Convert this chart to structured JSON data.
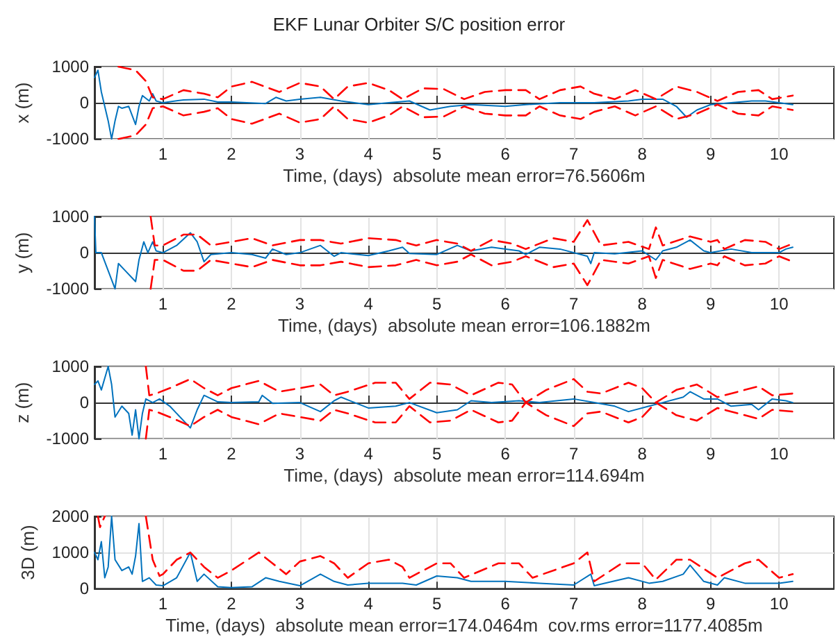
{
  "chart_data": [
    {
      "type": "line",
      "title": "EKF Lunar Orbiter S/C position error",
      "xlabel": "Time, (days)  absolute mean error=76.5606m",
      "ylabel": "x (m)",
      "xlim": [
        0,
        10.8
      ],
      "xticks": [
        1,
        2,
        3,
        4,
        5,
        6,
        7,
        8,
        9,
        10
      ],
      "ylim": [
        -1000,
        1000
      ],
      "yticks": [
        -1000,
        0,
        1000
      ],
      "grid": true,
      "marker": "none",
      "series": [
        {
          "color": "#0072bd",
          "line_style": "solid",
          "x": [
            0,
            0.05,
            0.1,
            0.2,
            0.25,
            0.3,
            0.35,
            0.4,
            0.5,
            0.6,
            0.65,
            0.7,
            0.8,
            0.85,
            0.9,
            1.0,
            1.3,
            1.6,
            1.8,
            2.0,
            2.5,
            2.65,
            2.8,
            3.0,
            3.3,
            3.6,
            4.0,
            4.3,
            4.6,
            4.9,
            5.2,
            5.5,
            6.0,
            6.3,
            6.8,
            7.3,
            7.8,
            8.0,
            8.3,
            8.5,
            8.65,
            8.8,
            9.0,
            9.3,
            9.6,
            9.8,
            10.0,
            10.2
          ],
          "values": [
            700,
            900,
            300,
            -500,
            -1000,
            -500,
            -100,
            -150,
            -100,
            -600,
            -100,
            200,
            50,
            250,
            50,
            0,
            80,
            100,
            20,
            20,
            -20,
            150,
            50,
            100,
            150,
            50,
            -50,
            0,
            50,
            -200,
            -100,
            -50,
            -100,
            -50,
            0,
            0,
            50,
            100,
            100,
            -100,
            -400,
            -200,
            -50,
            0,
            50,
            50,
            0,
            -50
          ]
        },
        {
          "color": "#ff0000",
          "line_style": "dashed",
          "x": [
            0.35,
            0.6,
            0.75,
            0.85,
            1.0,
            1.3,
            1.6,
            1.8,
            2.0,
            2.3,
            2.7,
            3.0,
            3.3,
            3.5,
            3.7,
            4.0,
            4.3,
            4.5,
            4.8,
            5.1,
            5.4,
            5.7,
            6.0,
            6.3,
            6.5,
            6.8,
            7.1,
            7.3,
            7.6,
            7.9,
            8.2,
            8.5,
            8.8,
            9.1,
            9.4,
            9.7,
            9.9,
            10.2
          ],
          "values": [
            1000,
            900,
            600,
            150,
            100,
            350,
            250,
            150,
            450,
            580,
            300,
            550,
            450,
            100,
            450,
            550,
            350,
            100,
            400,
            380,
            100,
            300,
            350,
            350,
            100,
            350,
            450,
            250,
            100,
            350,
            100,
            450,
            300,
            50,
            300,
            350,
            100,
            200
          ]
        },
        {
          "color": "#ff0000",
          "line_style": "dashed",
          "x": [
            0.35,
            0.6,
            0.75,
            0.85,
            1.0,
            1.3,
            1.6,
            1.8,
            2.0,
            2.3,
            2.7,
            3.0,
            3.3,
            3.5,
            3.7,
            4.0,
            4.3,
            4.5,
            4.8,
            5.1,
            5.4,
            5.7,
            6.0,
            6.3,
            6.5,
            6.8,
            7.1,
            7.3,
            7.6,
            7.9,
            8.2,
            8.5,
            8.8,
            9.1,
            9.4,
            9.7,
            9.9,
            10.2
          ],
          "values": [
            -1000,
            -900,
            -600,
            -150,
            -100,
            -350,
            -250,
            -150,
            -450,
            -580,
            -300,
            -550,
            -450,
            -100,
            -450,
            -550,
            -350,
            -100,
            -400,
            -380,
            -100,
            -300,
            -350,
            -350,
            -100,
            -350,
            -450,
            -250,
            -100,
            -350,
            -100,
            -450,
            -300,
            -50,
            -300,
            -350,
            -100,
            -200
          ]
        }
      ]
    },
    {
      "type": "line",
      "xlabel": "Time, (days)  absolute mean error=106.1882m",
      "ylabel": "y (m)",
      "xlim": [
        0,
        10.8
      ],
      "xticks": [
        1,
        2,
        3,
        4,
        5,
        6,
        7,
        8,
        9,
        10
      ],
      "ylim": [
        -1000,
        1000
      ],
      "yticks": [
        -1000,
        0,
        1000
      ],
      "grid": true,
      "marker": "none",
      "series": [
        {
          "color": "#0072bd",
          "line_style": "solid",
          "x": [
            0,
            0.02,
            0.1,
            0.2,
            0.3,
            0.35,
            0.45,
            0.6,
            0.65,
            0.72,
            0.78,
            0.85,
            0.9,
            1.0,
            1.2,
            1.4,
            1.5,
            1.6,
            1.7,
            2.0,
            2.3,
            2.5,
            2.6,
            2.8,
            3.0,
            3.3,
            3.5,
            3.6,
            4.0,
            4.3,
            4.5,
            4.6,
            5.0,
            5.3,
            5.5,
            5.8,
            6.2,
            6.3,
            6.5,
            6.8,
            7.2,
            7.25,
            7.3,
            7.6,
            8.0,
            8.2,
            8.3,
            8.5,
            8.7,
            8.9,
            9.0,
            9.3,
            9.6,
            10.0,
            10.1,
            10.2
          ],
          "values": [
            1000,
            0,
            0,
            -500,
            -1000,
            -300,
            -500,
            -800,
            -200,
            300,
            0,
            300,
            50,
            0,
            200,
            550,
            300,
            -250,
            -50,
            0,
            -50,
            -150,
            100,
            -50,
            0,
            200,
            -100,
            0,
            -80,
            50,
            150,
            -20,
            -50,
            200,
            50,
            150,
            50,
            -50,
            150,
            100,
            -100,
            -300,
            0,
            -30,
            50,
            -200,
            50,
            150,
            350,
            50,
            0,
            100,
            0,
            0,
            100,
            150
          ]
        },
        {
          "color": "#ff0000",
          "line_style": "dashed",
          "x": [
            0.82,
            0.88,
            1.0,
            1.3,
            1.5,
            1.7,
            2.0,
            2.3,
            2.6,
            3.0,
            3.3,
            3.6,
            4.0,
            4.4,
            4.7,
            5.0,
            5.3,
            5.5,
            5.8,
            6.1,
            6.3,
            6.7,
            7.0,
            7.2,
            7.4,
            7.8,
            8.1,
            8.2,
            8.3,
            8.7,
            9.0,
            9.1,
            9.2,
            9.5,
            9.8,
            10.0,
            10.2
          ],
          "values": [
            1000,
            200,
            200,
            500,
            500,
            200,
            300,
            400,
            200,
            350,
            350,
            250,
            400,
            350,
            200,
            350,
            250,
            50,
            350,
            250,
            100,
            400,
            300,
            900,
            200,
            300,
            100,
            700,
            200,
            450,
            300,
            350,
            100,
            350,
            300,
            100,
            250
          ]
        },
        {
          "color": "#ff0000",
          "line_style": "dashed",
          "x": [
            0.82,
            0.88,
            1.0,
            1.3,
            1.5,
            1.7,
            2.0,
            2.3,
            2.6,
            3.0,
            3.3,
            3.6,
            4.0,
            4.4,
            4.7,
            5.0,
            5.3,
            5.5,
            5.8,
            6.1,
            6.3,
            6.7,
            7.0,
            7.2,
            7.4,
            7.8,
            8.1,
            8.2,
            8.3,
            8.7,
            9.0,
            9.1,
            9.2,
            9.5,
            9.8,
            10.0,
            10.2
          ],
          "values": [
            -1000,
            -200,
            -200,
            -500,
            -500,
            -200,
            -300,
            -400,
            -200,
            -350,
            -350,
            -250,
            -400,
            -350,
            -200,
            -350,
            -250,
            -50,
            -350,
            -250,
            -100,
            -400,
            -300,
            -900,
            -200,
            -300,
            -100,
            -700,
            -200,
            -450,
            -300,
            -350,
            -100,
            -350,
            -300,
            -100,
            -250
          ]
        }
      ]
    },
    {
      "type": "line",
      "xlabel": "Time, (days)  absolute mean error=114.694m",
      "ylabel": "z (m)",
      "xlim": [
        0,
        10.8
      ],
      "xticks": [
        1,
        2,
        3,
        4,
        5,
        6,
        7,
        8,
        9,
        10
      ],
      "ylim": [
        -1000,
        1000
      ],
      "yticks": [
        -1000,
        0,
        1000
      ],
      "grid": true,
      "marker": "none",
      "series": [
        {
          "color": "#0072bd",
          "line_style": "solid",
          "x": [
            0,
            0.05,
            0.1,
            0.2,
            0.25,
            0.3,
            0.4,
            0.5,
            0.55,
            0.6,
            0.65,
            0.7,
            0.75,
            0.85,
            0.95,
            1.1,
            1.3,
            1.4,
            1.5,
            1.6,
            1.8,
            2.0,
            2.4,
            2.45,
            2.6,
            3.0,
            3.3,
            3.5,
            3.6,
            3.8,
            4.0,
            4.4,
            4.6,
            5.0,
            5.3,
            5.5,
            5.8,
            6.2,
            6.5,
            7.0,
            7.3,
            7.6,
            7.8,
            8.1,
            8.3,
            8.6,
            8.7,
            8.9,
            9.1,
            9.3,
            9.6,
            9.7,
            9.9,
            10.1,
            10.2
          ],
          "values": [
            500,
            600,
            350,
            1000,
            500,
            -400,
            -100,
            -300,
            -900,
            -200,
            -1000,
            -300,
            100,
            0,
            100,
            -100,
            -500,
            -700,
            -200,
            200,
            20,
            0,
            20,
            200,
            -20,
            0,
            -250,
            50,
            150,
            0,
            -150,
            -100,
            0,
            -280,
            -200,
            50,
            0,
            50,
            0,
            100,
            0,
            -100,
            -250,
            -100,
            0,
            150,
            300,
            100,
            100,
            -100,
            -50,
            -200,
            100,
            50,
            0
          ]
        },
        {
          "color": "#ff0000",
          "line_style": "dashed",
          "x": [
            0.75,
            0.8,
            0.9,
            1.1,
            1.4,
            1.6,
            1.8,
            2.0,
            2.4,
            2.7,
            3.0,
            3.3,
            3.5,
            3.7,
            4.1,
            4.4,
            4.6,
            4.9,
            5.2,
            5.5,
            5.9,
            6.1,
            6.3,
            6.6,
            7.0,
            7.2,
            7.4,
            7.8,
            8.0,
            8.2,
            8.5,
            8.8,
            9.1,
            9.4,
            9.7,
            9.9,
            10.2
          ],
          "values": [
            1000,
            200,
            250,
            400,
            650,
            400,
            200,
            400,
            600,
            300,
            400,
            500,
            200,
            300,
            550,
            550,
            100,
            550,
            500,
            200,
            550,
            500,
            0,
            350,
            650,
            300,
            250,
            550,
            400,
            0,
            350,
            500,
            150,
            300,
            450,
            200,
            250
          ]
        },
        {
          "color": "#ff0000",
          "line_style": "dashed",
          "x": [
            0.75,
            0.8,
            0.9,
            1.1,
            1.4,
            1.6,
            1.8,
            2.0,
            2.4,
            2.7,
            3.0,
            3.3,
            3.5,
            3.7,
            4.1,
            4.4,
            4.6,
            4.9,
            5.2,
            5.5,
            5.9,
            6.1,
            6.3,
            6.6,
            7.0,
            7.2,
            7.4,
            7.8,
            8.0,
            8.2,
            8.5,
            8.8,
            9.1,
            9.4,
            9.7,
            9.9,
            10.2
          ],
          "values": [
            -1000,
            -200,
            -250,
            -400,
            -650,
            -400,
            -200,
            -400,
            -600,
            -300,
            -400,
            -500,
            -200,
            -300,
            -550,
            -550,
            -100,
            -550,
            -500,
            -200,
            -550,
            -500,
            0,
            -350,
            -650,
            -300,
            -250,
            -550,
            -400,
            0,
            -350,
            -500,
            -150,
            -300,
            -450,
            -200,
            -250
          ]
        }
      ]
    },
    {
      "type": "line",
      "xlabel": "Time, (days)  absolute mean error=174.0464m  cov.rms error=1177.4085m",
      "ylabel": "3D (m)",
      "xlim": [
        0,
        10.8
      ],
      "xticks": [
        1,
        2,
        3,
        4,
        5,
        6,
        7,
        8,
        9,
        10
      ],
      "ylim": [
        0,
        2000
      ],
      "yticks": [
        0,
        1000,
        2000
      ],
      "grid": true,
      "marker": "none",
      "series": [
        {
          "color": "#0072bd",
          "line_style": "solid",
          "x": [
            0,
            0.05,
            0.1,
            0.15,
            0.2,
            0.25,
            0.3,
            0.4,
            0.5,
            0.55,
            0.6,
            0.65,
            0.7,
            0.8,
            0.9,
            1.0,
            1.2,
            1.4,
            1.5,
            1.6,
            1.8,
            2.0,
            2.3,
            2.5,
            2.7,
            3.0,
            3.3,
            3.5,
            3.7,
            4.0,
            4.5,
            4.7,
            5.0,
            5.3,
            5.5,
            6.0,
            6.5,
            7.0,
            7.25,
            7.3,
            7.8,
            8.1,
            8.3,
            8.6,
            8.7,
            8.9,
            9.1,
            9.2,
            9.5,
            10.0,
            10.2
          ],
          "values": [
            1000,
            800,
            1300,
            300,
            600,
            2000,
            800,
            500,
            600,
            400,
            900,
            1800,
            200,
            300,
            100,
            80,
            300,
            1000,
            200,
            400,
            50,
            30,
            50,
            300,
            200,
            80,
            400,
            200,
            100,
            150,
            150,
            100,
            350,
            300,
            200,
            200,
            150,
            100,
            400,
            80,
            300,
            150,
            200,
            400,
            650,
            200,
            100,
            300,
            150,
            150,
            200
          ]
        },
        {
          "color": "#ff0000",
          "line_style": "dashed",
          "x": [
            0.05,
            0.08,
            0.15,
            0.4,
            0.75,
            0.85,
            0.95,
            1.0,
            1.2,
            1.4,
            1.6,
            1.8,
            2.0,
            2.4,
            2.6,
            2.8,
            3.0,
            3.3,
            3.5,
            3.7,
            4.0,
            4.3,
            4.5,
            4.6,
            5.0,
            5.2,
            5.4,
            5.9,
            6.2,
            6.4,
            7.0,
            7.2,
            7.3,
            7.7,
            8.0,
            8.2,
            8.5,
            8.7,
            9.1,
            9.5,
            9.7,
            10.0,
            10.2
          ],
          "values": [
            2000,
            1700,
            2000,
            null,
            2000,
            800,
            350,
            400,
            800,
            1000,
            600,
            300,
            500,
            1000,
            700,
            400,
            750,
            900,
            700,
            300,
            700,
            800,
            600,
            300,
            700,
            700,
            300,
            700,
            700,
            300,
            700,
            1000,
            200,
            700,
            700,
            250,
            800,
            800,
            300,
            700,
            800,
            300,
            400
          ]
        }
      ]
    }
  ]
}
